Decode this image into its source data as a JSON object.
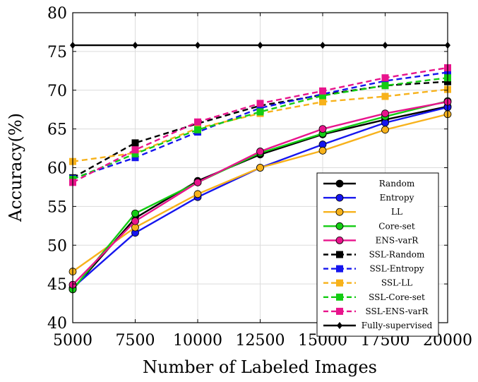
{
  "chart_data": {
    "type": "line",
    "title": "",
    "xlabel": "Number of Labeled Images",
    "ylabel": "Accuracy(%)",
    "x": [
      5000,
      7500,
      10000,
      12500,
      15000,
      17500,
      20000
    ],
    "x_tick_labels": [
      "5000",
      "7500",
      "10000",
      "12500",
      "15000",
      "17500",
      "20000"
    ],
    "ylim": [
      40,
      80
    ],
    "y_ticks": [
      40,
      45,
      50,
      55,
      60,
      65,
      70,
      75,
      80
    ],
    "y_tick_labels": [
      "40",
      "45",
      "50",
      "55",
      "60",
      "65",
      "70",
      "75",
      "80"
    ],
    "grid": true,
    "legend_position": "bottom-right",
    "series": [
      {
        "name": "Random",
        "color": "#000000",
        "dash": "solid",
        "marker": "circle",
        "values": [
          44.3,
          53.5,
          58.3,
          61.7,
          64.3,
          66.2,
          67.9
        ]
      },
      {
        "name": "Entropy",
        "color": "#1515ee",
        "dash": "solid",
        "marker": "circle",
        "values": [
          44.5,
          51.6,
          56.2,
          60.0,
          63.0,
          65.8,
          67.8
        ]
      },
      {
        "name": "LL",
        "color": "#f7b21b",
        "dash": "solid",
        "marker": "circle",
        "values": [
          46.6,
          52.3,
          56.6,
          60.0,
          62.2,
          64.9,
          66.9
        ]
      },
      {
        "name": "Core-set",
        "color": "#13cc13",
        "dash": "solid",
        "marker": "circle",
        "values": [
          44.3,
          54.1,
          58.1,
          61.9,
          64.4,
          66.6,
          68.6
        ]
      },
      {
        "name": "ENS-varR",
        "color": "#e8148c",
        "dash": "solid",
        "marker": "circle",
        "values": [
          44.9,
          53.1,
          58.1,
          62.1,
          65.0,
          67.0,
          68.5
        ]
      },
      {
        "name": "SSL-Random",
        "color": "#000000",
        "dash": "dashed",
        "marker": "square",
        "values": [
          58.7,
          63.2,
          65.7,
          68.0,
          69.4,
          70.6,
          71.1
        ]
      },
      {
        "name": "SSL-Entropy",
        "color": "#1515ee",
        "dash": "dashed",
        "marker": "square",
        "values": [
          58.6,
          61.3,
          64.6,
          67.7,
          69.5,
          71.2,
          72.3
        ]
      },
      {
        "name": "SSL-LL",
        "color": "#f7b21b",
        "dash": "dashed",
        "marker": "square",
        "values": [
          60.8,
          61.9,
          65.1,
          67.0,
          68.5,
          69.2,
          70.1
        ]
      },
      {
        "name": "SSL-Core-set",
        "color": "#13cc13",
        "dash": "dashed",
        "marker": "square",
        "values": [
          58.5,
          61.8,
          64.9,
          67.2,
          69.3,
          70.6,
          71.6
        ]
      },
      {
        "name": "SSL-ENS-varR",
        "color": "#e8148c",
        "dash": "dashed",
        "marker": "square",
        "values": [
          58.1,
          62.3,
          65.9,
          68.3,
          69.9,
          71.6,
          72.9
        ]
      },
      {
        "name": "Fully-supervised",
        "color": "#000000",
        "dash": "solid",
        "marker": "diamond",
        "values": [
          75.8,
          75.8,
          75.8,
          75.8,
          75.8,
          75.8,
          75.8
        ]
      }
    ]
  }
}
